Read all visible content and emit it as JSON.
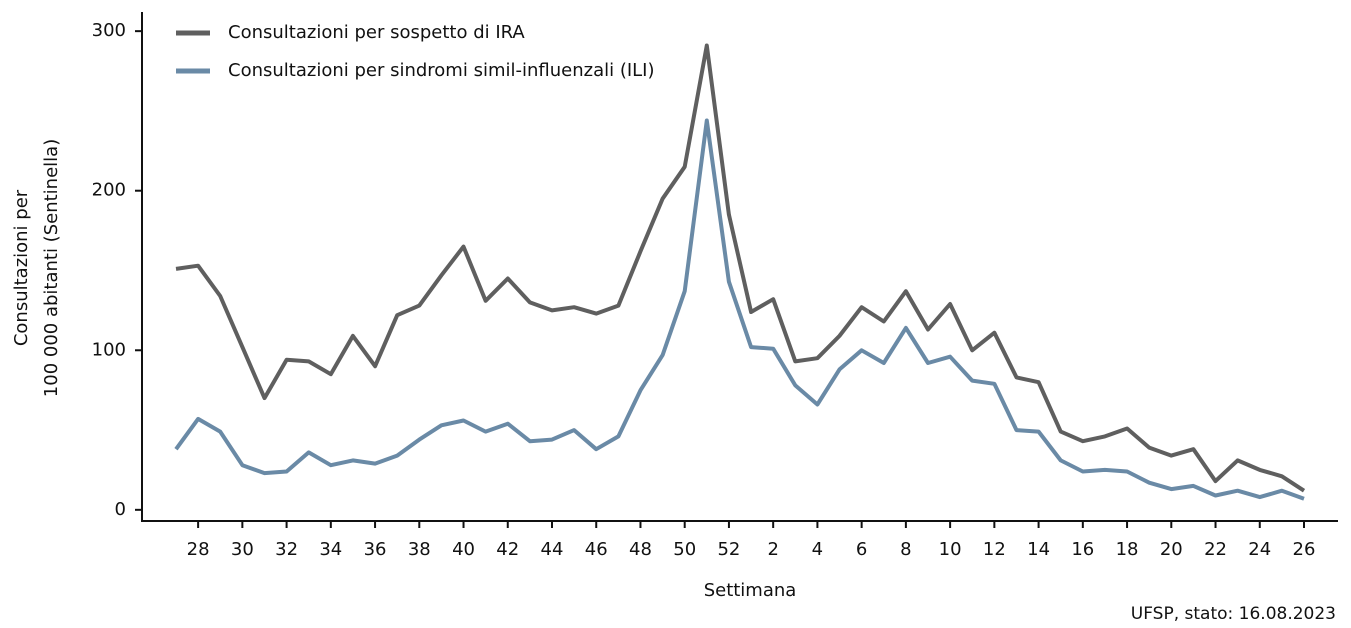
{
  "chart_data": {
    "type": "line",
    "ylabel": [
      "Consultazioni per",
      "100 000 abitanti (Sentinella)"
    ],
    "xlabel": "Settimana",
    "source": "UFSP, stato: 16.08.2023",
    "categories": [
      null,
      28,
      null,
      30,
      null,
      32,
      null,
      34,
      null,
      36,
      null,
      38,
      null,
      40,
      null,
      42,
      null,
      44,
      null,
      46,
      null,
      48,
      null,
      50,
      null,
      52,
      null,
      2,
      null,
      4,
      null,
      6,
      null,
      8,
      null,
      10,
      null,
      12,
      null,
      14,
      null,
      16,
      null,
      18,
      null,
      20,
      null,
      22,
      null,
      24,
      null,
      26
    ],
    "series": [
      {
        "name": "Consultazioni per sospetto di IRA",
        "color": "#5f5f5f",
        "values": [
          151,
          153,
          134,
          102,
          70,
          94,
          93,
          85,
          109,
          90,
          122,
          128,
          147,
          165,
          131,
          145,
          130,
          125,
          127,
          123,
          128,
          162,
          195,
          215,
          291,
          185,
          124,
          132,
          93,
          95,
          109,
          127,
          118,
          137,
          113,
          129,
          100,
          111,
          83,
          80,
          49,
          43,
          46,
          51,
          39,
          34,
          38,
          18,
          31,
          25,
          21,
          12
        ]
      },
      {
        "name": "Consultazioni per sindromi simil-influenzali (ILI)",
        "color": "#6a8aa6",
        "values": [
          38,
          57,
          49,
          28,
          23,
          24,
          36,
          28,
          31,
          29,
          34,
          44,
          53,
          56,
          49,
          54,
          43,
          44,
          50,
          38,
          46,
          75,
          97,
          137,
          244,
          143,
          102,
          101,
          78,
          66,
          88,
          100,
          92,
          114,
          92,
          96,
          81,
          79,
          50,
          49,
          31,
          24,
          25,
          24,
          17,
          13,
          15,
          9,
          12,
          8,
          12,
          7
        ]
      }
    ],
    "ylim": [
      -7,
      312
    ],
    "yticks": [
      0,
      100,
      200,
      300
    ],
    "legend": "top-left"
  }
}
